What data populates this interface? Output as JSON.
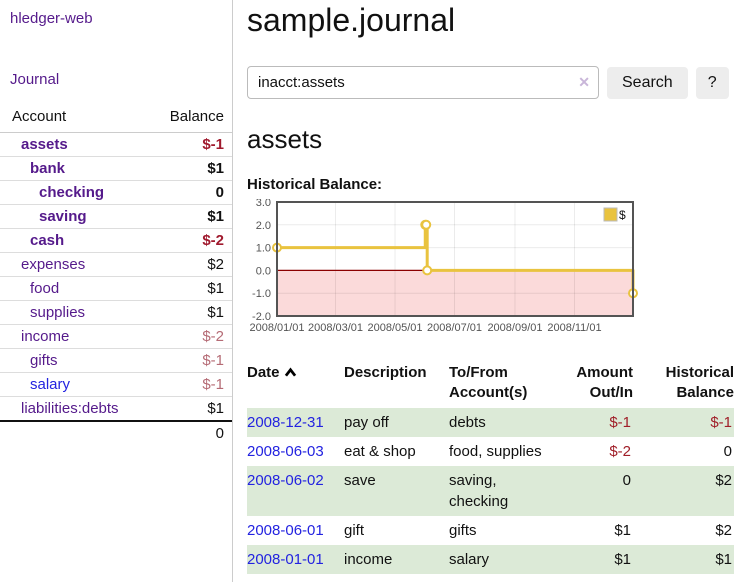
{
  "colors": {
    "link_purple": "#551a8b",
    "link_blue": "#2323e0",
    "negative_strong": "#a01a2e",
    "negative_light": "#b56b75",
    "row_stripe_green": "#dcead7",
    "chart_series_gold": "#e9c33f",
    "chart_negative_region": "#fbdada",
    "chart_zero_line": "#8b0000"
  },
  "icons": {
    "clear_search": "✕",
    "sort_ascending": "chevron-up",
    "legend_swatch": "square"
  },
  "sidebar": {
    "brand": "hledger-web",
    "nav": {
      "journal": "Journal"
    },
    "accounts_table": {
      "headers": {
        "account": "Account",
        "balance": "Balance"
      },
      "rows": [
        {
          "name": "assets",
          "indent": 1,
          "bold": true,
          "balance": "$-1",
          "balance_style": "neg-strong"
        },
        {
          "name": "bank",
          "indent": 2,
          "bold": true,
          "balance": "$1",
          "balance_style": ""
        },
        {
          "name": "checking",
          "indent": 3,
          "bold": true,
          "balance": "0",
          "balance_style": ""
        },
        {
          "name": "saving",
          "indent": 3,
          "bold": true,
          "balance": "$1",
          "balance_style": ""
        },
        {
          "name": "cash",
          "indent": 2,
          "bold": true,
          "balance": "$-2",
          "balance_style": "neg-strong"
        },
        {
          "name": "expenses",
          "indent": 1,
          "bold": false,
          "balance": "$2",
          "balance_style": ""
        },
        {
          "name": "food",
          "indent": 2,
          "bold": false,
          "balance": "$1",
          "balance_style": ""
        },
        {
          "name": "supplies",
          "indent": 2,
          "bold": false,
          "balance": "$1",
          "balance_style": ""
        },
        {
          "name": "income",
          "indent": 1,
          "bold": false,
          "balance": "$-2",
          "balance_style": "neg-light"
        },
        {
          "name": "gifts",
          "indent": 2,
          "bold": false,
          "balance": "$-1",
          "balance_style": "neg-light"
        },
        {
          "name": "salary",
          "indent": 2,
          "bold": false,
          "balance": "$-1",
          "balance_style": "neg-light",
          "link_color": "blue"
        },
        {
          "name": "liabilities:debts",
          "indent": 1,
          "bold": false,
          "balance": "$1",
          "balance_style": ""
        }
      ],
      "total": "0"
    }
  },
  "main": {
    "title": "sample.journal",
    "search": {
      "value": "inacct:assets",
      "clear_icon": "✕",
      "button_label": "Search",
      "help_label": "?"
    },
    "account_heading": "assets",
    "chart_title": "Historical Balance:",
    "register_table": {
      "headers": {
        "date": "Date",
        "description": "Description",
        "accounts": "To/From Account(s)",
        "amount": "Amount Out/In",
        "balance": "Historical Balance"
      },
      "rows": [
        {
          "date": "2008-12-31",
          "description": "pay off",
          "accounts": "debts",
          "amount": "$-1",
          "balance": "$-1",
          "amount_neg": true,
          "balance_neg": true
        },
        {
          "date": "2008-06-03",
          "description": "eat & shop",
          "accounts": "food, supplies",
          "amount": "$-2",
          "balance": "0",
          "amount_neg": true,
          "balance_neg": false
        },
        {
          "date": "2008-06-02",
          "description": "save",
          "accounts": "saving, checking",
          "amount": "0",
          "balance": "$2",
          "amount_neg": false,
          "balance_neg": false
        },
        {
          "date": "2008-06-01",
          "description": "gift",
          "accounts": "gifts",
          "amount": "$1",
          "balance": "$2",
          "amount_neg": false,
          "balance_neg": false
        },
        {
          "date": "2008-01-01",
          "description": "income",
          "accounts": "salary",
          "amount": "$1",
          "balance": "$1",
          "amount_neg": false,
          "balance_neg": false
        }
      ]
    }
  },
  "chart_data": {
    "type": "line",
    "title": "Historical Balance",
    "step": true,
    "series": [
      {
        "name": "$",
        "color": "#e9c33f",
        "points": [
          [
            "2008-01-01",
            1
          ],
          [
            "2008-06-01",
            2
          ],
          [
            "2008-06-02",
            2
          ],
          [
            "2008-06-03",
            0
          ],
          [
            "2008-12-31",
            -1
          ]
        ]
      }
    ],
    "x_range": [
      "2008-01-01",
      "2008-12-31"
    ],
    "x_ticks": [
      "2008/01/01",
      "2008/03/01",
      "2008/05/01",
      "2008/07/01",
      "2008/09/01",
      "2008/11/01"
    ],
    "y_ticks": [
      3.0,
      2.0,
      1.0,
      0.0,
      -1.0,
      -2.0
    ],
    "ylim": [
      -2,
      3
    ],
    "grid": true,
    "legend": {
      "position": "top-right",
      "label": "$"
    },
    "negative_region_color": "#fbdada",
    "zero_line_color": "#8b0000"
  }
}
